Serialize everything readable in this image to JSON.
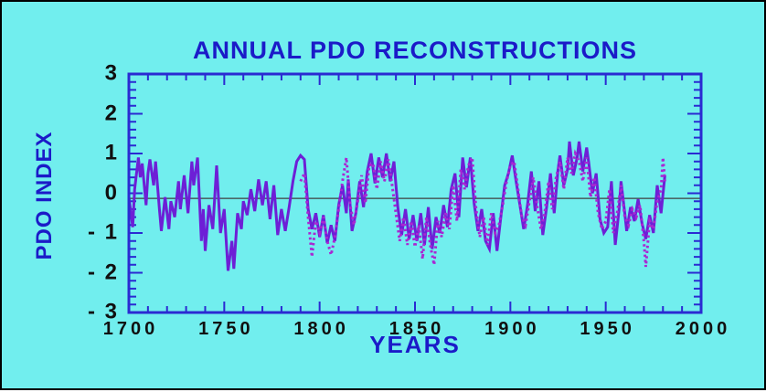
{
  "title": "ANNUAL PDO RECONSTRUCTIONS",
  "x_axis_label": "YEARS",
  "y_axis_label": "PDO INDEX",
  "colors": {
    "background": "#71eeee",
    "outer_border": "#000000",
    "title_text": "#1b1bc8",
    "axis_frame": "#2a2ad2",
    "tick_label_text": "#101010",
    "solid_series": "#6d1fd6",
    "dotted_series": "#a928d2",
    "reference_line": "#3f3f3f"
  },
  "chart_data": {
    "type": "line",
    "title": "ANNUAL PDO RECONSTRUCTIONS",
    "xlabel": "YEARS",
    "ylabel": "PDO INDEX",
    "xlim": [
      1700,
      2000
    ],
    "ylim": [
      -3,
      3
    ],
    "grid": false,
    "legend": "none",
    "x_major_ticks": [
      1700,
      1750,
      1800,
      1850,
      1900,
      1950,
      2000
    ],
    "x_tick_labels": [
      "1700",
      "1750",
      "1800",
      "1850",
      "1900",
      "1950",
      "2000"
    ],
    "x_minor_step": 10,
    "y_major_ticks": [
      3,
      2,
      1,
      0,
      -1,
      -2,
      -3
    ],
    "y_tick_labels": [
      "3",
      "2",
      "1",
      "0",
      "- 1",
      "- 2",
      "- 3"
    ],
    "y_minor_step": 0.2,
    "reference_line_y": -0.13,
    "series": [
      {
        "name": "reconstruction-solid",
        "style": "solid",
        "points": [
          [
            1700,
            -0.1
          ],
          [
            1702,
            -0.85
          ],
          [
            1703,
            0.1
          ],
          [
            1705,
            0.9
          ],
          [
            1706,
            0.4
          ],
          [
            1707,
            0.75
          ],
          [
            1709,
            -0.3
          ],
          [
            1710,
            0.5
          ],
          [
            1711,
            0.85
          ],
          [
            1713,
            0.2
          ],
          [
            1714,
            0.8
          ],
          [
            1716,
            -0.4
          ],
          [
            1717,
            -0.95
          ],
          [
            1719,
            -0.1
          ],
          [
            1721,
            -0.9
          ],
          [
            1722,
            -0.2
          ],
          [
            1724,
            -0.6
          ],
          [
            1726,
            0.3
          ],
          [
            1727,
            -0.4
          ],
          [
            1729,
            0.45
          ],
          [
            1731,
            -0.5
          ],
          [
            1733,
            0.8
          ],
          [
            1734,
            0.2
          ],
          [
            1736,
            0.9
          ],
          [
            1738,
            -1.2
          ],
          [
            1739,
            -0.4
          ],
          [
            1740,
            -1.45
          ],
          [
            1742,
            -0.3
          ],
          [
            1744,
            -0.9
          ],
          [
            1746,
            0.7
          ],
          [
            1748,
            -1.0
          ],
          [
            1750,
            -0.4
          ],
          [
            1752,
            -1.95
          ],
          [
            1754,
            -1.2
          ],
          [
            1755,
            -1.9
          ],
          [
            1757,
            -0.5
          ],
          [
            1759,
            -0.9
          ],
          [
            1760,
            -0.2
          ],
          [
            1762,
            -0.55
          ],
          [
            1764,
            0.1
          ],
          [
            1766,
            -0.45
          ],
          [
            1768,
            0.35
          ],
          [
            1770,
            -0.3
          ],
          [
            1772,
            0.3
          ],
          [
            1774,
            -0.65
          ],
          [
            1776,
            0.2
          ],
          [
            1778,
            -1.05
          ],
          [
            1780,
            -0.4
          ],
          [
            1782,
            -0.95
          ],
          [
            1784,
            -0.35
          ],
          [
            1786,
            0.3
          ],
          [
            1788,
            0.8
          ],
          [
            1790,
            0.95
          ],
          [
            1792,
            0.85
          ],
          [
            1794,
            -0.4
          ],
          [
            1796,
            -0.9
          ],
          [
            1798,
            -0.5
          ],
          [
            1800,
            -1.1
          ],
          [
            1802,
            -0.55
          ],
          [
            1804,
            -1.25
          ],
          [
            1806,
            -0.8
          ],
          [
            1808,
            -1.2
          ],
          [
            1810,
            -0.3
          ],
          [
            1812,
            0.2
          ],
          [
            1814,
            -0.5
          ],
          [
            1815,
            0.35
          ],
          [
            1817,
            -0.95
          ],
          [
            1819,
            -0.5
          ],
          [
            1821,
            0.3
          ],
          [
            1823,
            -0.35
          ],
          [
            1825,
            0.55
          ],
          [
            1827,
            1.0
          ],
          [
            1829,
            0.25
          ],
          [
            1831,
            0.9
          ],
          [
            1833,
            0.4
          ],
          [
            1835,
            1.0
          ],
          [
            1837,
            0.3
          ],
          [
            1839,
            0.8
          ],
          [
            1841,
            -0.35
          ],
          [
            1843,
            -1.05
          ],
          [
            1845,
            -0.4
          ],
          [
            1847,
            -1.15
          ],
          [
            1849,
            -0.55
          ],
          [
            1851,
            -1.2
          ],
          [
            1853,
            -0.5
          ],
          [
            1855,
            -1.3
          ],
          [
            1857,
            -0.35
          ],
          [
            1859,
            -1.4
          ],
          [
            1861,
            -0.6
          ],
          [
            1863,
            -1.0
          ],
          [
            1865,
            -0.3
          ],
          [
            1867,
            -0.85
          ],
          [
            1869,
            0.1
          ],
          [
            1871,
            0.5
          ],
          [
            1873,
            -0.6
          ],
          [
            1875,
            0.9
          ],
          [
            1877,
            0.15
          ],
          [
            1879,
            0.9
          ],
          [
            1881,
            -0.25
          ],
          [
            1883,
            -0.95
          ],
          [
            1885,
            -0.4
          ],
          [
            1887,
            -1.2
          ],
          [
            1889,
            -1.4
          ],
          [
            1891,
            -0.5
          ],
          [
            1893,
            -1.45
          ],
          [
            1895,
            -0.6
          ],
          [
            1897,
            0.2
          ],
          [
            1899,
            0.5
          ],
          [
            1901,
            0.95
          ],
          [
            1903,
            0.3
          ],
          [
            1905,
            -0.3
          ],
          [
            1907,
            -0.9
          ],
          [
            1909,
            -0.3
          ],
          [
            1911,
            0.55
          ],
          [
            1913,
            -0.45
          ],
          [
            1915,
            0.3
          ],
          [
            1917,
            -1.05
          ],
          [
            1919,
            -0.35
          ],
          [
            1921,
            0.5
          ],
          [
            1923,
            -0.5
          ],
          [
            1925,
            0.6
          ],
          [
            1926,
            0.95
          ],
          [
            1928,
            0.2
          ],
          [
            1930,
            0.6
          ],
          [
            1931,
            1.3
          ],
          [
            1933,
            0.45
          ],
          [
            1935,
            0.9
          ],
          [
            1936,
            1.3
          ],
          [
            1938,
            0.55
          ],
          [
            1940,
            1.15
          ],
          [
            1941,
            0.8
          ],
          [
            1943,
            0.0
          ],
          [
            1945,
            0.5
          ],
          [
            1947,
            -0.65
          ],
          [
            1949,
            -1.0
          ],
          [
            1951,
            -0.85
          ],
          [
            1953,
            0.3
          ],
          [
            1955,
            -1.3
          ],
          [
            1957,
            -0.4
          ],
          [
            1958,
            0.3
          ],
          [
            1960,
            -0.5
          ],
          [
            1961,
            -0.95
          ],
          [
            1963,
            -0.35
          ],
          [
            1965,
            -0.7
          ],
          [
            1967,
            -0.15
          ],
          [
            1969,
            -0.75
          ],
          [
            1971,
            -1.15
          ],
          [
            1973,
            -0.55
          ],
          [
            1975,
            -1.0
          ],
          [
            1977,
            0.2
          ],
          [
            1979,
            -0.5
          ],
          [
            1981,
            0.45
          ]
        ]
      },
      {
        "name": "reconstruction-dotted",
        "style": "dotted",
        "points": [
          [
            1790,
            0.3
          ],
          [
            1792,
            0.5
          ],
          [
            1794,
            -0.6
          ],
          [
            1796,
            -1.6
          ],
          [
            1798,
            -0.7
          ],
          [
            1800,
            -1.0
          ],
          [
            1802,
            -0.6
          ],
          [
            1804,
            -1.2
          ],
          [
            1806,
            -1.55
          ],
          [
            1808,
            -1.1
          ],
          [
            1810,
            -0.4
          ],
          [
            1812,
            0.3
          ],
          [
            1814,
            0.9
          ],
          [
            1816,
            -0.3
          ],
          [
            1818,
            -0.8
          ],
          [
            1820,
            -0.2
          ],
          [
            1822,
            0.45
          ],
          [
            1824,
            -0.25
          ],
          [
            1826,
            0.7
          ],
          [
            1828,
            0.75
          ],
          [
            1830,
            0.1
          ],
          [
            1832,
            0.8
          ],
          [
            1834,
            0.3
          ],
          [
            1836,
            0.85
          ],
          [
            1838,
            0.2
          ],
          [
            1840,
            -0.5
          ],
          [
            1842,
            -1.2
          ],
          [
            1844,
            -0.6
          ],
          [
            1846,
            -1.3
          ],
          [
            1848,
            -0.7
          ],
          [
            1850,
            -1.35
          ],
          [
            1852,
            -0.8
          ],
          [
            1854,
            -1.65
          ],
          [
            1856,
            -0.6
          ],
          [
            1858,
            -1.3
          ],
          [
            1860,
            -1.8
          ],
          [
            1862,
            -0.7
          ],
          [
            1864,
            -1.1
          ],
          [
            1866,
            -0.5
          ],
          [
            1868,
            -0.9
          ],
          [
            1870,
            0.2
          ],
          [
            1872,
            -0.7
          ],
          [
            1874,
            0.6
          ],
          [
            1876,
            0.1
          ],
          [
            1878,
            0.7
          ],
          [
            1880,
            0.9
          ],
          [
            1882,
            -0.4
          ],
          [
            1884,
            -1.1
          ],
          [
            1886,
            -0.6
          ],
          [
            1888,
            -1.3
          ],
          [
            1890,
            -0.5
          ],
          [
            1892,
            -1.0
          ],
          [
            1894,
            -0.8
          ],
          [
            1896,
            -0.3
          ],
          [
            1898,
            0.3
          ],
          [
            1900,
            0.7
          ],
          [
            1902,
            0.8
          ],
          [
            1904,
            0.1
          ],
          [
            1906,
            -0.6
          ],
          [
            1908,
            -0.8
          ],
          [
            1910,
            -0.2
          ],
          [
            1912,
            0.4
          ],
          [
            1914,
            -0.3
          ],
          [
            1916,
            -0.9
          ],
          [
            1918,
            -0.5
          ],
          [
            1920,
            0.3
          ],
          [
            1922,
            -0.4
          ],
          [
            1924,
            0.4
          ],
          [
            1926,
            0.8
          ],
          [
            1928,
            0.1
          ],
          [
            1930,
            0.9
          ],
          [
            1932,
            0.5
          ],
          [
            1934,
            1.0
          ],
          [
            1936,
            0.8
          ],
          [
            1938,
            0.3
          ],
          [
            1940,
            0.9
          ],
          [
            1942,
            -0.1
          ],
          [
            1944,
            0.4
          ],
          [
            1946,
            -0.5
          ],
          [
            1948,
            -0.9
          ],
          [
            1950,
            -0.7
          ],
          [
            1952,
            0.1
          ],
          [
            1954,
            -1.0
          ],
          [
            1956,
            -0.5
          ],
          [
            1958,
            0.2
          ],
          [
            1960,
            -0.6
          ],
          [
            1962,
            -0.8
          ],
          [
            1964,
            -0.4
          ],
          [
            1966,
            -0.6
          ],
          [
            1968,
            -0.3
          ],
          [
            1970,
            -1.2
          ],
          [
            1971,
            -1.85
          ],
          [
            1973,
            -0.7
          ],
          [
            1975,
            -0.9
          ],
          [
            1977,
            -0.2
          ],
          [
            1979,
            0.1
          ],
          [
            1980,
            0.9
          ],
          [
            1981,
            0.3
          ]
        ]
      }
    ]
  }
}
